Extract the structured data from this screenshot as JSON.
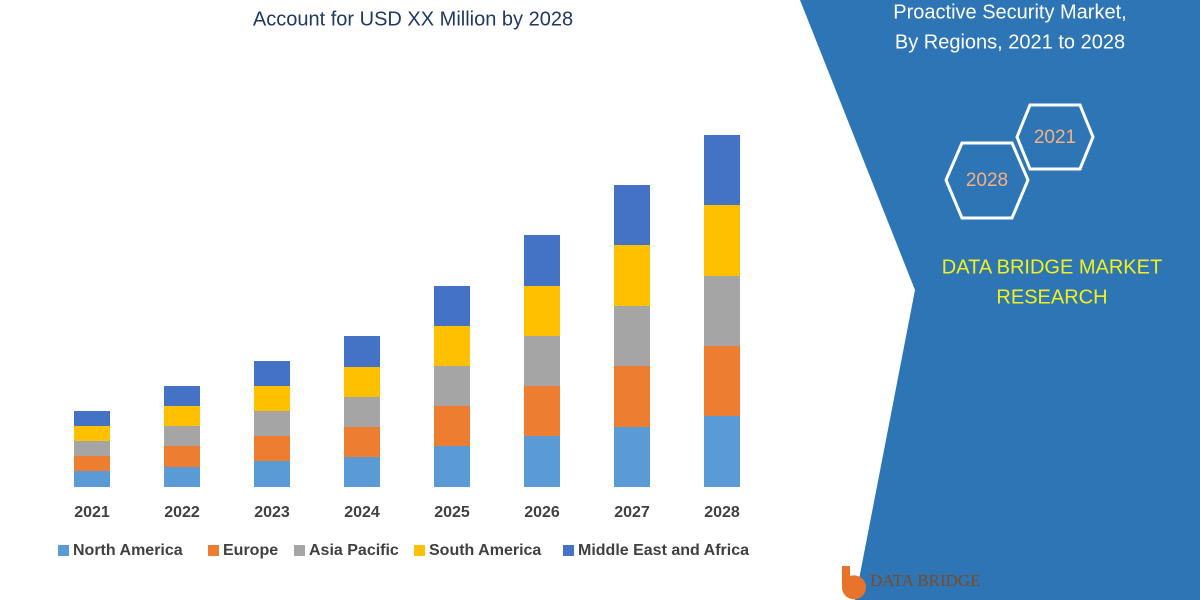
{
  "chart_data": {
    "type": "stacked_bar",
    "title": "Account for USD XX Million by 2028",
    "panel_title": [
      "Proactive Security Market,",
      "By Regions, 2021 to 2028"
    ],
    "badges": [
      "2021",
      "2028"
    ],
    "brand": [
      "DATA BRIDGE MARKET",
      "RESEARCH"
    ],
    "logo_text": "DATA BRIDGE",
    "categories": [
      "2021",
      "2022",
      "2023",
      "2024",
      "2025",
      "2026",
      "2027",
      "2028"
    ],
    "series": [
      {
        "name": "North America",
        "color": "#5b9bd5",
        "values": [
          16,
          20,
          26,
          30,
          41,
          51,
          60,
          71
        ]
      },
      {
        "name": "Europe",
        "color": "#ed7d31",
        "values": [
          15,
          21,
          25,
          30,
          40,
          50,
          61,
          70
        ]
      },
      {
        "name": "Asia Pacific",
        "color": "#a5a5a5",
        "values": [
          15,
          20,
          25,
          30,
          40,
          50,
          60,
          70
        ]
      },
      {
        "name": "South America",
        "color": "#ffc000",
        "values": [
          15,
          20,
          25,
          30,
          40,
          50,
          61,
          71
        ]
      },
      {
        "name": "Middle East and Africa",
        "color": "#4472c4",
        "values": [
          15,
          20,
          25,
          31,
          40,
          51,
          60,
          70
        ]
      }
    ],
    "ylim": [
      0,
      352
    ]
  }
}
